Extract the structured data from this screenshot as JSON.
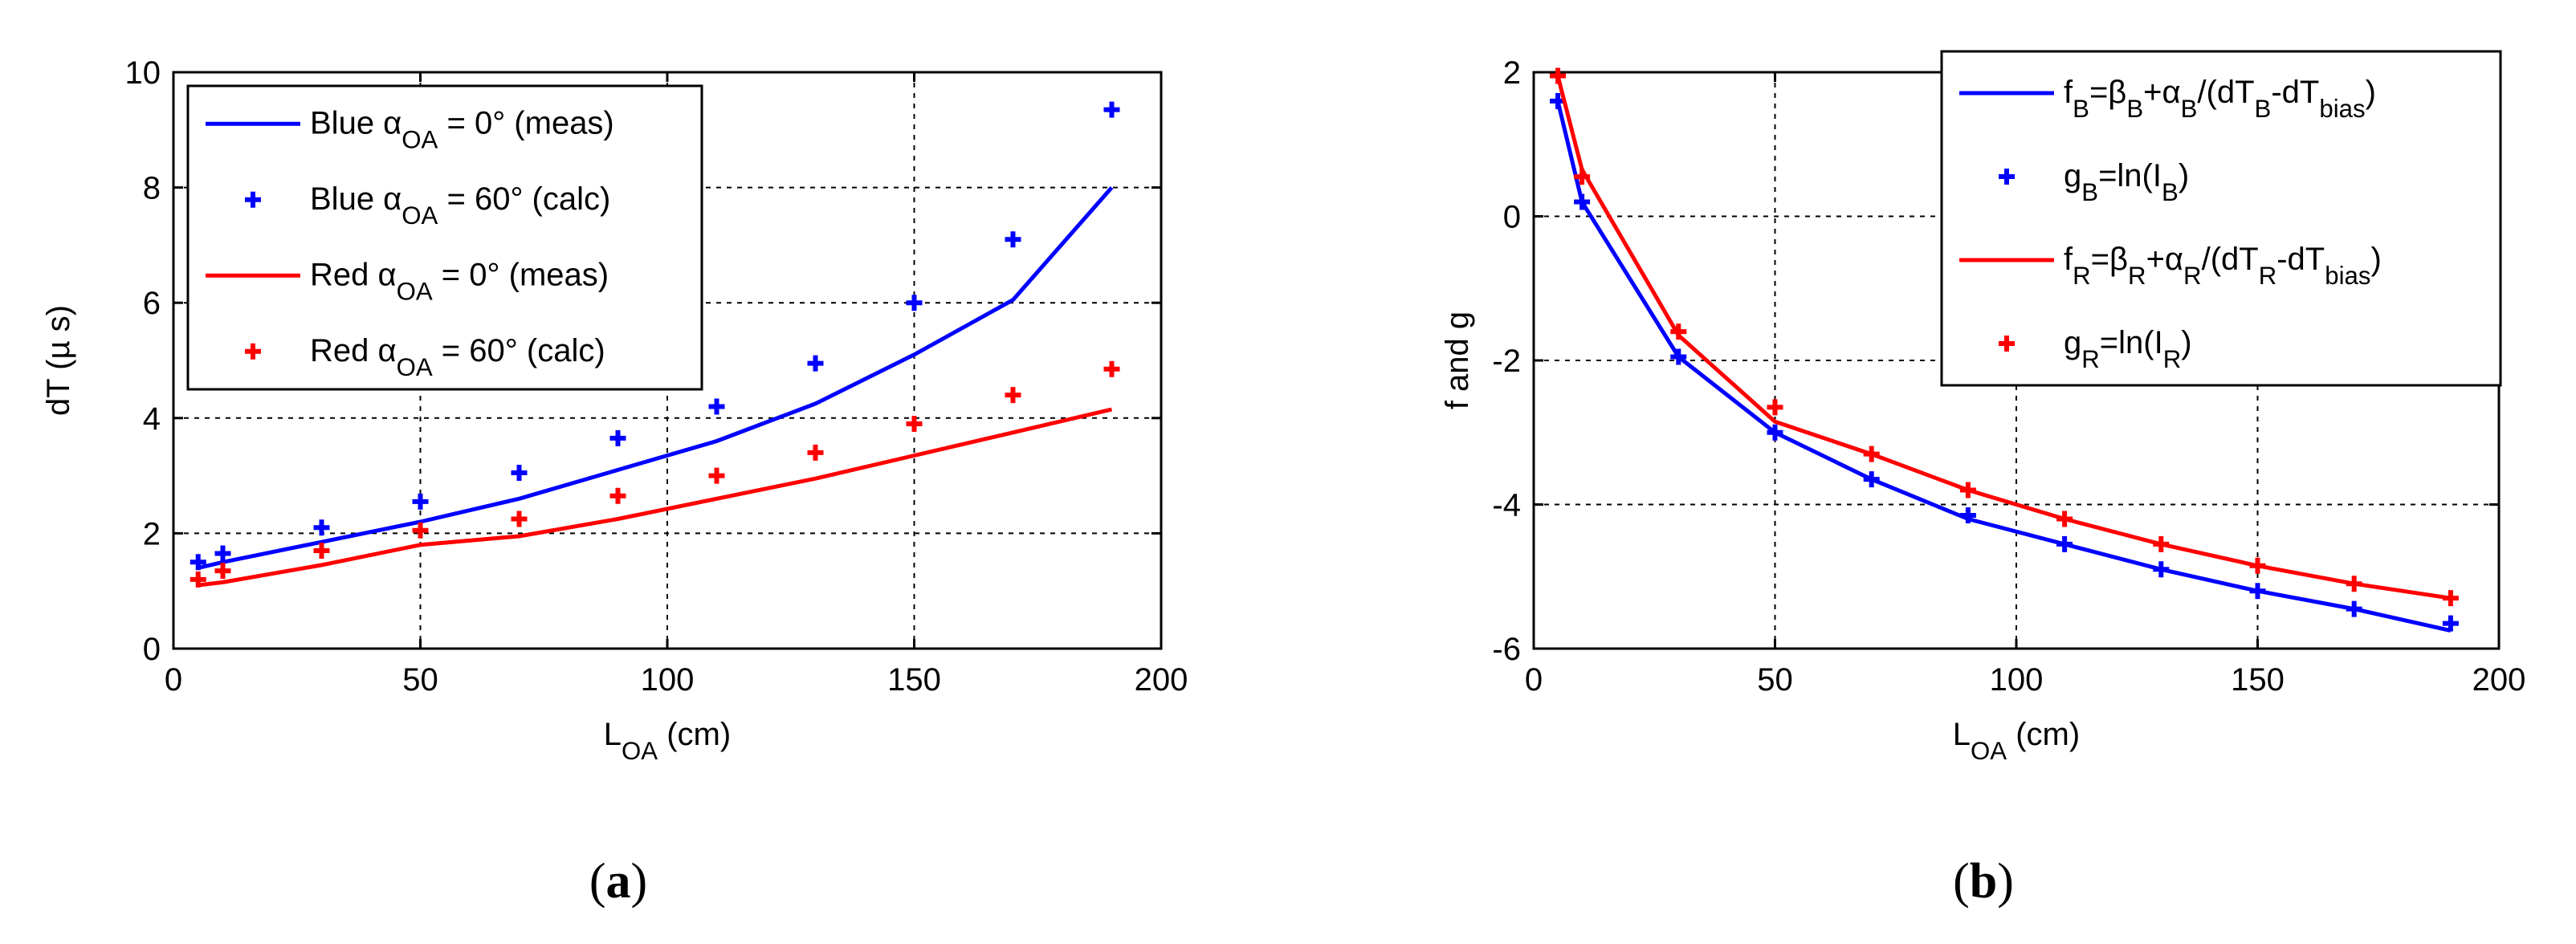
{
  "chart_data": [
    {
      "panel": "a",
      "type": "line",
      "caption_open": "(",
      "caption_letter": "a",
      "caption_close": ")",
      "xlabel": {
        "main": "L",
        "sub": "OA",
        "rest": " (cm)"
      },
      "ylabel": "dT (µ s)",
      "xlim": [
        0,
        200
      ],
      "ylim": [
        0,
        10
      ],
      "xticks": [
        "0",
        "50",
        "100",
        "150",
        "200"
      ],
      "yticks": [
        "0",
        "2",
        "4",
        "6",
        "8",
        "10"
      ],
      "grid": true,
      "legend_position": "top-left",
      "series": [
        {
          "name": "Blue αOA = 0° (meas)",
          "legend_parts": [
            [
              "Blue ",
              ""
            ],
            [
              "α",
              ""
            ],
            [
              "OA",
              "sub"
            ],
            [
              " = 0° (meas)",
              ""
            ]
          ],
          "style": "line",
          "color": "#0000ff",
          "x": [
            5,
            10,
            30,
            50,
            70,
            90,
            110,
            130,
            150,
            170,
            190
          ],
          "y": [
            1.4,
            1.5,
            1.85,
            2.2,
            2.6,
            3.1,
            3.6,
            4.25,
            5.1,
            6.05,
            8.0
          ]
        },
        {
          "name": "Blue αOA = 60° (calc)",
          "legend_parts": [
            [
              "Blue ",
              ""
            ],
            [
              "α",
              ""
            ],
            [
              "OA",
              "sub"
            ],
            [
              " = 60° (calc)",
              ""
            ]
          ],
          "style": "marker",
          "color": "#0000ff",
          "x": [
            5,
            10,
            30,
            50,
            70,
            90,
            110,
            130,
            150,
            170,
            190
          ],
          "y": [
            1.5,
            1.65,
            2.1,
            2.55,
            3.05,
            3.65,
            4.2,
            4.95,
            6.0,
            7.1,
            9.35
          ]
        },
        {
          "name": "Red αOA = 0° (meas)",
          "legend_parts": [
            [
              "Red ",
              ""
            ],
            [
              "α",
              ""
            ],
            [
              "OA",
              "sub"
            ],
            [
              " = 0° (meas)",
              ""
            ]
          ],
          "style": "line",
          "color": "#ff0000",
          "x": [
            5,
            10,
            30,
            50,
            70,
            90,
            110,
            130,
            150,
            170,
            190
          ],
          "y": [
            1.1,
            1.15,
            1.45,
            1.8,
            1.95,
            2.25,
            2.6,
            2.95,
            3.35,
            3.75,
            4.15
          ]
        },
        {
          "name": "Red αOA = 60° (calc)",
          "legend_parts": [
            [
              "Red ",
              ""
            ],
            [
              "α",
              ""
            ],
            [
              "OA",
              "sub"
            ],
            [
              " = 60° (calc)",
              ""
            ]
          ],
          "style": "marker",
          "color": "#ff0000",
          "x": [
            5,
            10,
            30,
            50,
            70,
            90,
            110,
            130,
            150,
            170,
            190
          ],
          "y": [
            1.2,
            1.35,
            1.7,
            2.05,
            2.25,
            2.65,
            3.0,
            3.4,
            3.9,
            4.4,
            4.85
          ]
        }
      ]
    },
    {
      "panel": "b",
      "type": "line",
      "caption_open": "(",
      "caption_letter": "b",
      "caption_close": ")",
      "xlabel": {
        "main": "L",
        "sub": "OA",
        "rest": " (cm)"
      },
      "ylabel": "f  and  g",
      "xlim": [
        0,
        200
      ],
      "ylim": [
        -6,
        2
      ],
      "xticks": [
        "0",
        "50",
        "100",
        "150",
        "200"
      ],
      "yticks": [
        "-6",
        "-4",
        "-2",
        "0",
        "2"
      ],
      "grid": true,
      "legend_position": "top-right",
      "series": [
        {
          "name": "fB=βB+αB/(dTB-dTbias)",
          "legend_parts": [
            [
              "f",
              ""
            ],
            [
              "B",
              "sub"
            ],
            [
              "=β",
              ""
            ],
            [
              "B",
              "sub"
            ],
            [
              "+α",
              ""
            ],
            [
              "B",
              "sub"
            ],
            [
              "/(dT",
              ""
            ],
            [
              "B",
              "sub"
            ],
            [
              "-dT",
              ""
            ],
            [
              "bias",
              "sub"
            ],
            [
              ")",
              ""
            ]
          ],
          "style": "line",
          "color": "#0000ff",
          "x": [
            5,
            10,
            30,
            50,
            70,
            90,
            110,
            130,
            150,
            170,
            190
          ],
          "y": [
            1.6,
            0.2,
            -1.95,
            -3.0,
            -3.65,
            -4.2,
            -4.55,
            -4.9,
            -5.2,
            -5.45,
            -5.75
          ]
        },
        {
          "name": "gB=ln(IB)",
          "legend_parts": [
            [
              "g",
              ""
            ],
            [
              "B",
              "sub"
            ],
            [
              "=ln(I",
              ""
            ],
            [
              "B",
              "sub"
            ],
            [
              ")",
              ""
            ]
          ],
          "style": "marker",
          "color": "#0000ff",
          "x": [
            5,
            10,
            30,
            50,
            70,
            90,
            110,
            130,
            150,
            170,
            190
          ],
          "y": [
            1.6,
            0.2,
            -1.95,
            -3.0,
            -3.65,
            -4.15,
            -4.55,
            -4.9,
            -5.2,
            -5.45,
            -5.65
          ]
        },
        {
          "name": "fR=βR+αR/(dTR-dTbias)",
          "legend_parts": [
            [
              "f",
              ""
            ],
            [
              "R",
              "sub"
            ],
            [
              "=β",
              ""
            ],
            [
              "R",
              "sub"
            ],
            [
              "+α",
              ""
            ],
            [
              "R",
              "sub"
            ],
            [
              "/(dT",
              ""
            ],
            [
              "R",
              "sub"
            ],
            [
              "-dT",
              ""
            ],
            [
              "bias",
              "sub"
            ],
            [
              ")",
              ""
            ]
          ],
          "style": "line",
          "color": "#ff0000",
          "x": [
            5,
            10,
            30,
            50,
            70,
            90,
            110,
            130,
            150,
            170,
            190
          ],
          "y": [
            1.95,
            0.65,
            -1.65,
            -2.85,
            -3.3,
            -3.8,
            -4.2,
            -4.55,
            -4.85,
            -5.1,
            -5.3
          ]
        },
        {
          "name": "gR=ln(IR)",
          "legend_parts": [
            [
              "g",
              ""
            ],
            [
              "R",
              "sub"
            ],
            [
              "=ln(I",
              ""
            ],
            [
              "R",
              "sub"
            ],
            [
              ")",
              ""
            ]
          ],
          "style": "marker",
          "color": "#ff0000",
          "x": [
            5,
            10,
            30,
            50,
            70,
            90,
            110,
            130,
            150,
            170,
            190
          ],
          "y": [
            1.95,
            0.55,
            -1.6,
            -2.65,
            -3.3,
            -3.8,
            -4.2,
            -4.55,
            -4.85,
            -5.1,
            -5.3
          ]
        }
      ]
    }
  ]
}
